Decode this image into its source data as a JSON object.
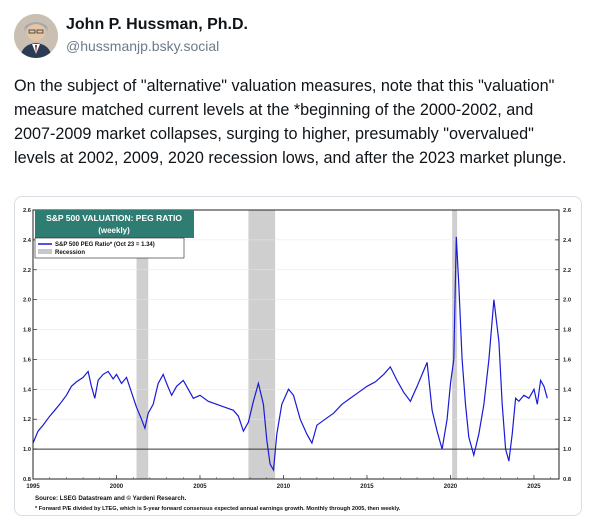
{
  "author": {
    "name": "John P. Hussman, Ph.D.",
    "handle": "@hussmanjp.bsky.social"
  },
  "post": {
    "text": "On the subject of \"alternative\" valuation measures, note that this \"valuation\" measure matched current levels at the *beginning of the 2000-2002, and 2007-2009 market collapses, surging to higher, presumably \"overvalued\" levels at 2002, 2009, 2020 recession lows, and after the 2023 market plunge."
  },
  "chart_data": {
    "type": "line",
    "title": "S&P 500 VALUATION: PEG RATIO",
    "subtitle": "(weekly)",
    "legend": {
      "series_label": "S&P 500 PEG Ratio* (Oct 23 = 1.34)",
      "recession_label": "Recession",
      "placement": "top-left"
    },
    "xlim": [
      1995,
      2026.5
    ],
    "ylim": [
      0.8,
      2.6
    ],
    "x_ticks": [
      "1995",
      "2000",
      "2005",
      "2010",
      "2015",
      "2020",
      "2025"
    ],
    "y_ticks": [
      "0.8",
      "1.0",
      "1.2",
      "1.4",
      "1.6",
      "1.8",
      "2.0",
      "2.2",
      "2.4",
      "2.6"
    ],
    "reference_line": 1.0,
    "recessions": [
      [
        2001.2,
        2001.9
      ],
      [
        2007.9,
        2009.5
      ],
      [
        2020.1,
        2020.4
      ]
    ],
    "series": [
      {
        "name": "S&P 500 PEG Ratio",
        "color": "#1a1ad8",
        "x": [
          1995.0,
          1995.3,
          1995.6,
          1996.0,
          1996.3,
          1996.6,
          1997.0,
          1997.3,
          1997.6,
          1998.0,
          1998.3,
          1998.5,
          1998.7,
          1998.9,
          1999.2,
          1999.5,
          1999.8,
          2000.0,
          2000.3,
          2000.6,
          2000.9,
          2001.2,
          2001.5,
          2001.7,
          2001.9,
          2002.2,
          2002.5,
          2002.8,
          2003.0,
          2003.3,
          2003.6,
          2004.0,
          2004.3,
          2004.6,
          2005.0,
          2005.5,
          2006.0,
          2006.5,
          2007.0,
          2007.3,
          2007.6,
          2007.9,
          2008.2,
          2008.5,
          2008.8,
          2009.0,
          2009.2,
          2009.4,
          2009.6,
          2009.9,
          2010.3,
          2010.6,
          2011.0,
          2011.4,
          2011.7,
          2012.0,
          2012.5,
          2013.0,
          2013.5,
          2014.0,
          2014.5,
          2015.0,
          2015.5,
          2016.0,
          2016.4,
          2016.8,
          2017.2,
          2017.6,
          2018.0,
          2018.3,
          2018.6,
          2018.9,
          2019.2,
          2019.5,
          2019.8,
          2020.0,
          2020.2,
          2020.35,
          2020.5,
          2020.7,
          2020.9,
          2021.1,
          2021.4,
          2021.7,
          2022.0,
          2022.3,
          2022.6,
          2022.9,
          2023.1,
          2023.3,
          2023.5,
          2023.7,
          2023.9,
          2024.1,
          2024.4,
          2024.7,
          2025.0,
          2025.2,
          2025.4,
          2025.6,
          2025.8
        ],
        "y": [
          1.04,
          1.12,
          1.16,
          1.22,
          1.26,
          1.3,
          1.36,
          1.42,
          1.45,
          1.48,
          1.52,
          1.42,
          1.34,
          1.46,
          1.5,
          1.52,
          1.47,
          1.5,
          1.44,
          1.48,
          1.38,
          1.28,
          1.2,
          1.14,
          1.24,
          1.3,
          1.44,
          1.5,
          1.44,
          1.36,
          1.42,
          1.46,
          1.4,
          1.34,
          1.36,
          1.32,
          1.3,
          1.28,
          1.26,
          1.22,
          1.12,
          1.18,
          1.32,
          1.44,
          1.3,
          1.06,
          0.9,
          0.86,
          1.1,
          1.3,
          1.4,
          1.36,
          1.2,
          1.1,
          1.04,
          1.16,
          1.2,
          1.24,
          1.3,
          1.34,
          1.38,
          1.42,
          1.45,
          1.5,
          1.55,
          1.46,
          1.38,
          1.32,
          1.42,
          1.5,
          1.58,
          1.26,
          1.12,
          1.0,
          1.2,
          1.44,
          1.6,
          2.42,
          2.1,
          1.6,
          1.3,
          1.08,
          0.96,
          1.1,
          1.3,
          1.6,
          2.0,
          1.72,
          1.3,
          1.0,
          0.92,
          1.1,
          1.34,
          1.32,
          1.36,
          1.34,
          1.4,
          1.3,
          1.46,
          1.42,
          1.34
        ]
      }
    ],
    "source_note": "Source: LSEG Datastream and © Yardeni Research.",
    "footnote": "* Forward P/E divided by LTEG, which is 5-year forward consensus expected annual earnings growth. Monthly through 2005, then weekly."
  }
}
